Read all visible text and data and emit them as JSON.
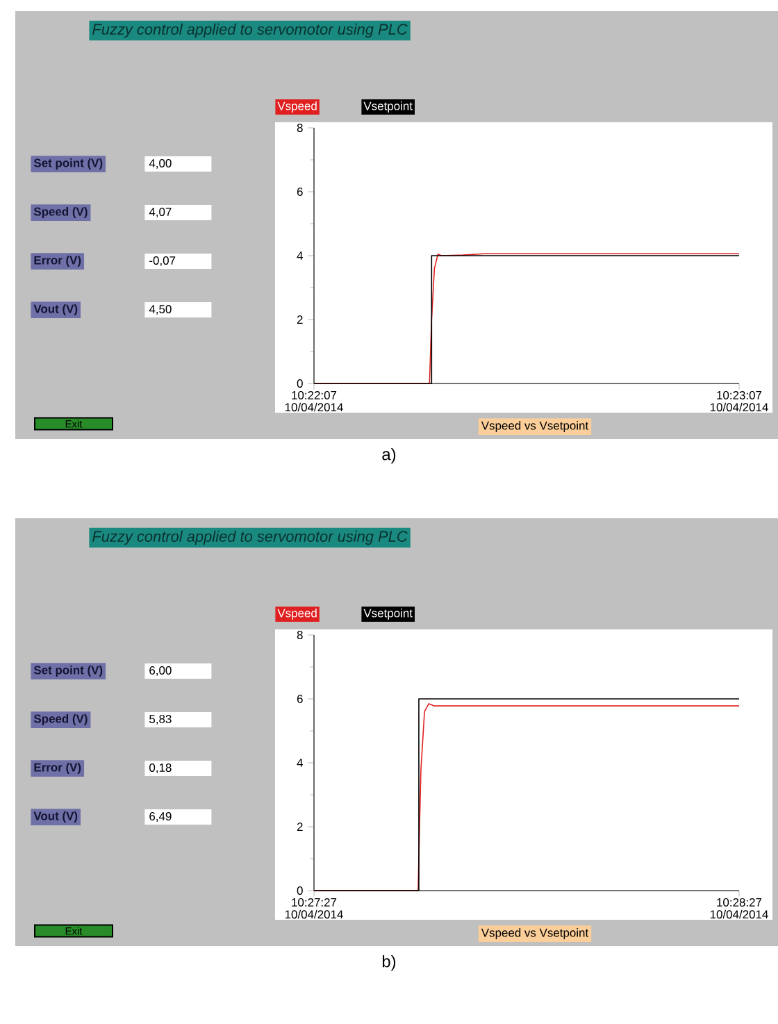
{
  "chart_data": [
    {
      "type": "line",
      "title": "Fuzzy control applied to servomotor using PLC",
      "xlabel": "Vspeed vs Vsetpoint",
      "legend": "top left",
      "annotations": [
        "Set point (V)",
        "4,00",
        "Speed (V)",
        "4,07",
        "Error (V)",
        "-0,07",
        "Vout (V)",
        "4,50",
        "Exit",
        "a)",
        "10/04/2014",
        "10/04/2014"
      ],
      "xlim": [
        10.368611,
        10.385278
      ],
      "xticks": [
        {
          "value": 10.368611,
          "label": "10:22:07"
        },
        {
          "value": 10.385278,
          "label": "10:23:07"
        }
      ],
      "ylim": [
        0,
        8
      ],
      "yticks": [
        0,
        2,
        4,
        6,
        8
      ],
      "series": [
        {
          "name": "Vspeed",
          "color": "#e02020",
          "x": [
            10.368611,
            10.373139,
            10.373222,
            10.373333,
            10.373472,
            10.373611,
            10.374444,
            10.375278,
            10.385278
          ],
          "values": [
            0,
            0,
            2,
            3.6,
            4.05,
            4.0,
            4.02,
            4.06,
            4.06
          ]
        },
        {
          "name": "Vsetpoint",
          "color": "#000000",
          "x": [
            10.368611,
            10.373222,
            10.373222,
            10.385278
          ],
          "values": [
            0,
            0,
            4,
            4
          ]
        }
      ]
    },
    {
      "type": "line",
      "title": "Fuzzy control applied to servomotor using PLC",
      "xlabel": "Vspeed vs Vsetpoint",
      "legend": "top left",
      "annotations": [
        "Set point (V)",
        "6,00",
        "Speed (V)",
        "5,83",
        "Error (V)",
        "0,18",
        "Vout (V)",
        "6,49",
        "Exit",
        "b)",
        "10/04/2014",
        "10/04/2014"
      ],
      "xlim": [
        10.4575,
        10.474167
      ],
      "xticks": [
        {
          "value": 10.4575,
          "label": "10:27:27"
        },
        {
          "value": 10.474167,
          "label": "10:28:27"
        }
      ],
      "ylim": [
        0,
        8
      ],
      "yticks": [
        0,
        2,
        4,
        6,
        8
      ],
      "series": [
        {
          "name": "Vspeed",
          "color": "#e02020",
          "x": [
            10.4575,
            10.461583,
            10.461639,
            10.461694,
            10.461833,
            10.462,
            10.462222,
            10.463611,
            10.474167
          ],
          "values": [
            0,
            0,
            2,
            3.8,
            5.6,
            5.85,
            5.78,
            5.78,
            5.78
          ]
        },
        {
          "name": "Vsetpoint",
          "color": "#000000",
          "x": [
            10.4575,
            10.461611,
            10.461611,
            10.474167
          ],
          "values": [
            0,
            0,
            6,
            6
          ]
        }
      ]
    }
  ]
}
